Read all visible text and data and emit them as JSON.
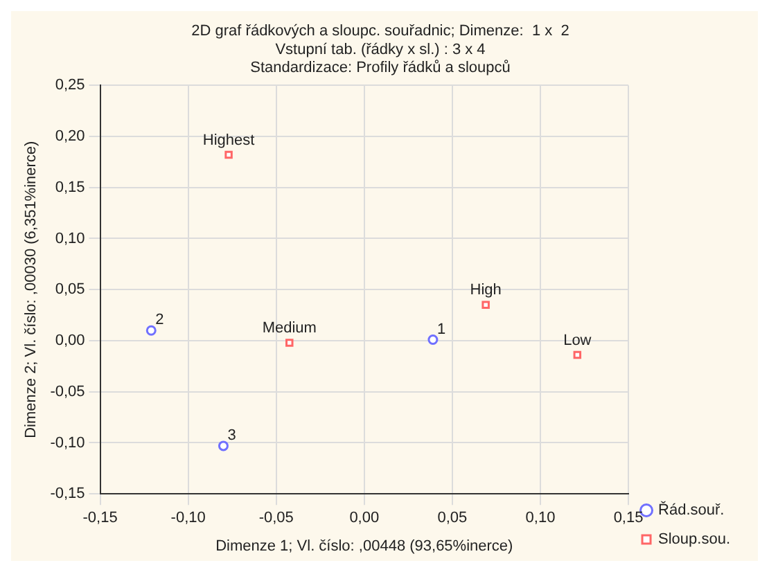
{
  "chart_data": {
    "type": "scatter",
    "title": "2D graf řádkových a sloupc. souřadnic; Dimenze:  1 x  2",
    "subtitle": "Vstupní tab. (řádky x sl.) : 3 x 4\nStandardizace: Profily řádků a sloupců",
    "xlabel": "Dimenze 1; Vl. číslo: ,00448 (93,65%inerce)",
    "ylabel": "Dimenze 2; Vl. číslo: ,00030 (6,351%inerce)",
    "xlim": [
      -0.15,
      0.15
    ],
    "ylim": [
      -0.15,
      0.25
    ],
    "xticks": [
      {
        "value": -0.15,
        "label": "-0,15"
      },
      {
        "value": -0.1,
        "label": "-0,10"
      },
      {
        "value": -0.05,
        "label": "-0,05"
      },
      {
        "value": 0,
        "label": "0,00"
      },
      {
        "value": 0.05,
        "label": "0,05"
      },
      {
        "value": 0.1,
        "label": "0,10"
      },
      {
        "value": 0.15,
        "label": "0,15"
      }
    ],
    "yticks": [
      {
        "value": -0.15,
        "label": "-0,15"
      },
      {
        "value": -0.1,
        "label": "-0,10"
      },
      {
        "value": -0.05,
        "label": "-0,05"
      },
      {
        "value": 0,
        "label": "0,00"
      },
      {
        "value": 0.05,
        "label": "0,05"
      },
      {
        "value": 0.1,
        "label": "0,10"
      },
      {
        "value": 0.15,
        "label": "0,15"
      },
      {
        "value": 0.2,
        "label": "0,20"
      },
      {
        "value": 0.25,
        "label": "0,25"
      }
    ],
    "grid": true,
    "legend": "bottom right",
    "series": [
      {
        "name": "Řád.souř.",
        "color": "#7070ff",
        "marker": "circle",
        "x": [
          0.039,
          -0.121,
          -0.08
        ],
        "values": [
          0.001,
          0.01,
          -0.103
        ]
      },
      {
        "name": "Sloup.sou.",
        "color": "#ff6666",
        "marker": "square",
        "x": [
          -0.077,
          -0.0425,
          0.069,
          0.121
        ],
        "values": [
          0.182,
          -0.002,
          0.035,
          -0.014
        ]
      }
    ],
    "annotations": [
      {
        "text": "1",
        "x": 0.039,
        "y": 0.001
      },
      {
        "text": "2",
        "x": -0.121,
        "y": 0.01
      },
      {
        "text": "3",
        "x": -0.08,
        "y": -0.103
      },
      {
        "text": "Highest",
        "x": -0.077,
        "y": 0.182
      },
      {
        "text": "Medium",
        "x": -0.0425,
        "y": -0.002
      },
      {
        "text": "High",
        "x": 0.069,
        "y": 0.035
      },
      {
        "text": "Low",
        "x": 0.121,
        "y": -0.014
      }
    ]
  }
}
